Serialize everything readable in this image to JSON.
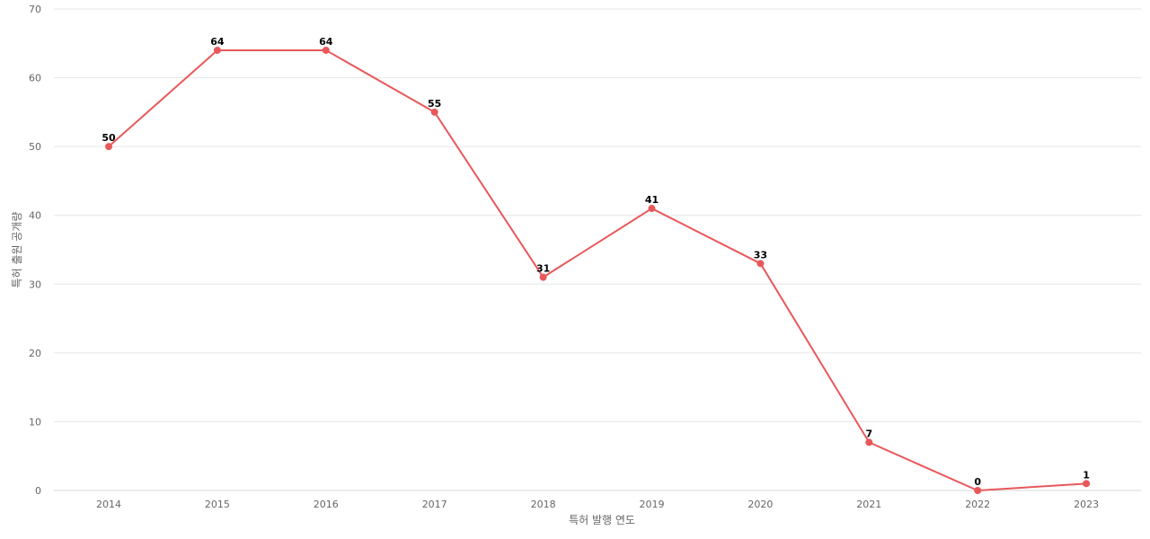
{
  "chart_data": {
    "type": "line",
    "title": "",
    "xlabel": "특허 발행 연도",
    "ylabel": "특허 출원 공개량",
    "categories": [
      "2014",
      "2015",
      "2016",
      "2017",
      "2018",
      "2019",
      "2020",
      "2021",
      "2022",
      "2023"
    ],
    "series": [
      {
        "values": [
          50,
          64,
          64,
          55,
          31,
          41,
          33,
          7,
          0,
          1
        ]
      }
    ],
    "ylim": [
      0,
      70
    ],
    "yticks": [
      0,
      10,
      20,
      30,
      40,
      50,
      60,
      70
    ],
    "grid": true,
    "legend": "none",
    "colors": {
      "line": "#e8585a",
      "marker": "#e8585a",
      "grid": "#e6e6e6"
    }
  }
}
